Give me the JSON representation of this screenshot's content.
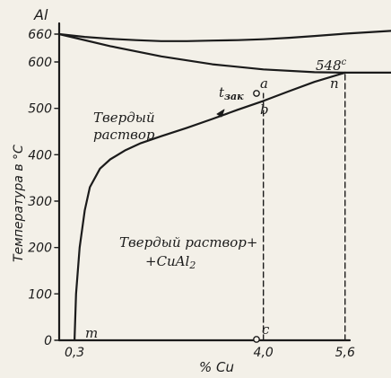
{
  "chart_data": {
    "type": "line",
    "title": "",
    "ylabel": "Температура в °C",
    "xlabel": "% Cu",
    "element_label": "Al",
    "xlim": [
      0,
      6.5
    ],
    "ylim": [
      0,
      660
    ],
    "y_ticks": [
      "0",
      "100",
      "200",
      "300",
      "400",
      "500",
      "600",
      "660"
    ],
    "y_tick_values": [
      0,
      100,
      200,
      300,
      400,
      500,
      600,
      660
    ],
    "x_ticks": [
      "0,3",
      "4,0",
      "5,6"
    ],
    "x_tick_values": [
      0.3,
      4.0,
      5.6
    ],
    "curves": {
      "liquidus": {
        "x": [
          0,
          0.5,
          1,
          1.5,
          2,
          2.5,
          3,
          3.5,
          4,
          4.5,
          5,
          5.6,
          6.5
        ],
        "y": [
          660,
          654,
          650,
          647,
          645,
          645,
          646,
          647,
          649,
          652,
          656,
          661,
          667
        ]
      },
      "solidus": {
        "x": [
          0,
          1,
          2,
          3,
          4,
          5,
          5.6,
          6.5
        ],
        "y": [
          660,
          634,
          612,
          595,
          584,
          578,
          577,
          577
        ]
      },
      "solvus": {
        "x": [
          0.3,
          0.33,
          0.4,
          0.5,
          0.6,
          0.8,
          1.0,
          1.3,
          1.6,
          2.0,
          2.5,
          3.0,
          3.5,
          4.0,
          4.5,
          5.0,
          5.6
        ],
        "y": [
          0,
          100,
          200,
          280,
          330,
          370,
          390,
          410,
          425,
          440,
          458,
          477,
          497,
          516,
          537,
          557,
          577
        ]
      }
    },
    "dashed_lines": [
      {
        "x": 4.0,
        "y_from": 0,
        "y_to": 532
      },
      {
        "x": 5.6,
        "y_from": 0,
        "y_to": 577
      }
    ],
    "points": [
      {
        "label": "a",
        "x": 4.0,
        "y": 532
      },
      {
        "label": "b",
        "x": 4.0,
        "y": 516
      },
      {
        "label": "c",
        "x": 4.0,
        "y": 0
      },
      {
        "label": "m",
        "x": 0.3,
        "y": 0
      },
      {
        "label": "n",
        "x": 5.6,
        "y": 577
      }
    ],
    "annotations": {
      "temp_548": "548",
      "temp_548_sup": "c",
      "t_label": "t",
      "t_sub": "зак",
      "solid_solution_1": "Твердый",
      "solid_solution_2": "раствор",
      "two_phase_1": "Твердый раствор+",
      "two_phase_2": "+CuAl",
      "two_phase_sub": "2"
    }
  }
}
